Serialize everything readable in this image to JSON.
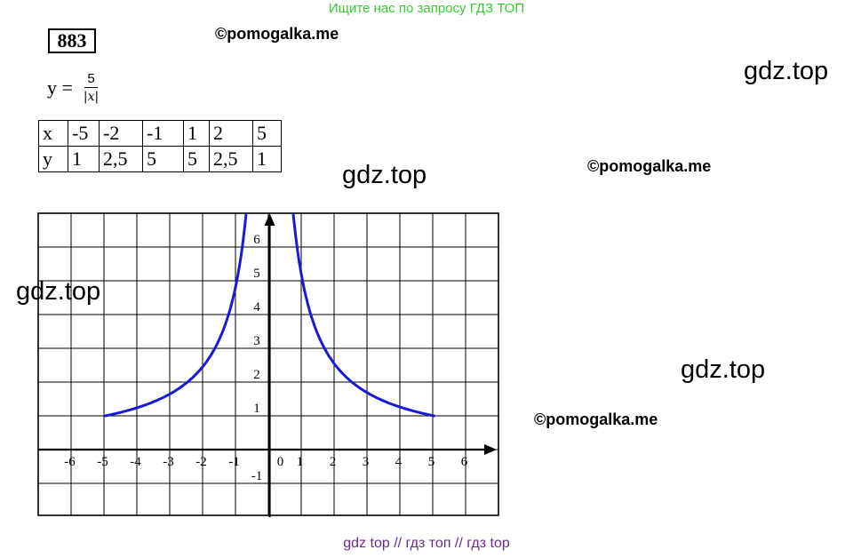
{
  "banner": "Ищите нас по запросу ГДЗ ТОП",
  "task_number": "883",
  "formula": {
    "lhs": "y =",
    "numerator": "5",
    "denominator": "|x|"
  },
  "table": {
    "rows": [
      [
        "x",
        "-5",
        "-2",
        "-1",
        "1",
        "2",
        "5"
      ],
      [
        "y",
        "1",
        "2,5",
        "5",
        "5",
        "2,5",
        "1"
      ]
    ]
  },
  "watermarks": {
    "gdz": [
      "gdz.top",
      "gdz.top",
      "gdz.top",
      "gdz.top"
    ],
    "pomogalka": [
      "©pomogalka.me",
      "©pomogalka.me",
      "©pomogalka.me"
    ]
  },
  "footer": "gdz top  //  гдз топ  //  гдз top",
  "chart_data": {
    "type": "line",
    "title": "",
    "xlabel": "",
    "ylabel": "",
    "function": "y = 5/|x|",
    "xlim": [
      -7,
      7
    ],
    "ylim": [
      -2,
      7
    ],
    "x_tick_labels": [
      "-6",
      "-5",
      "-4",
      "-3",
      "-2",
      "-1",
      "0",
      "1",
      "2",
      "3",
      "4",
      "5",
      "6"
    ],
    "y_tick_labels": [
      "-1",
      "1",
      "2",
      "3",
      "4",
      "5",
      "6"
    ],
    "grid": true,
    "line_color": "#1a1ad6",
    "series": [
      {
        "x": [
          -5,
          -4,
          -3,
          -2.5,
          -2,
          -1.5,
          -1.25,
          -1,
          -0.83,
          -0.72
        ],
        "y": [
          1,
          1.25,
          1.67,
          2,
          2.5,
          3.33,
          4,
          5,
          6,
          6.9
        ]
      },
      {
        "x": [
          0.72,
          0.83,
          1,
          1.25,
          1.5,
          2,
          2.5,
          3,
          4,
          5
        ],
        "y": [
          6.9,
          6,
          5,
          4,
          3.33,
          2.5,
          2,
          1.67,
          1.25,
          1
        ]
      }
    ]
  }
}
